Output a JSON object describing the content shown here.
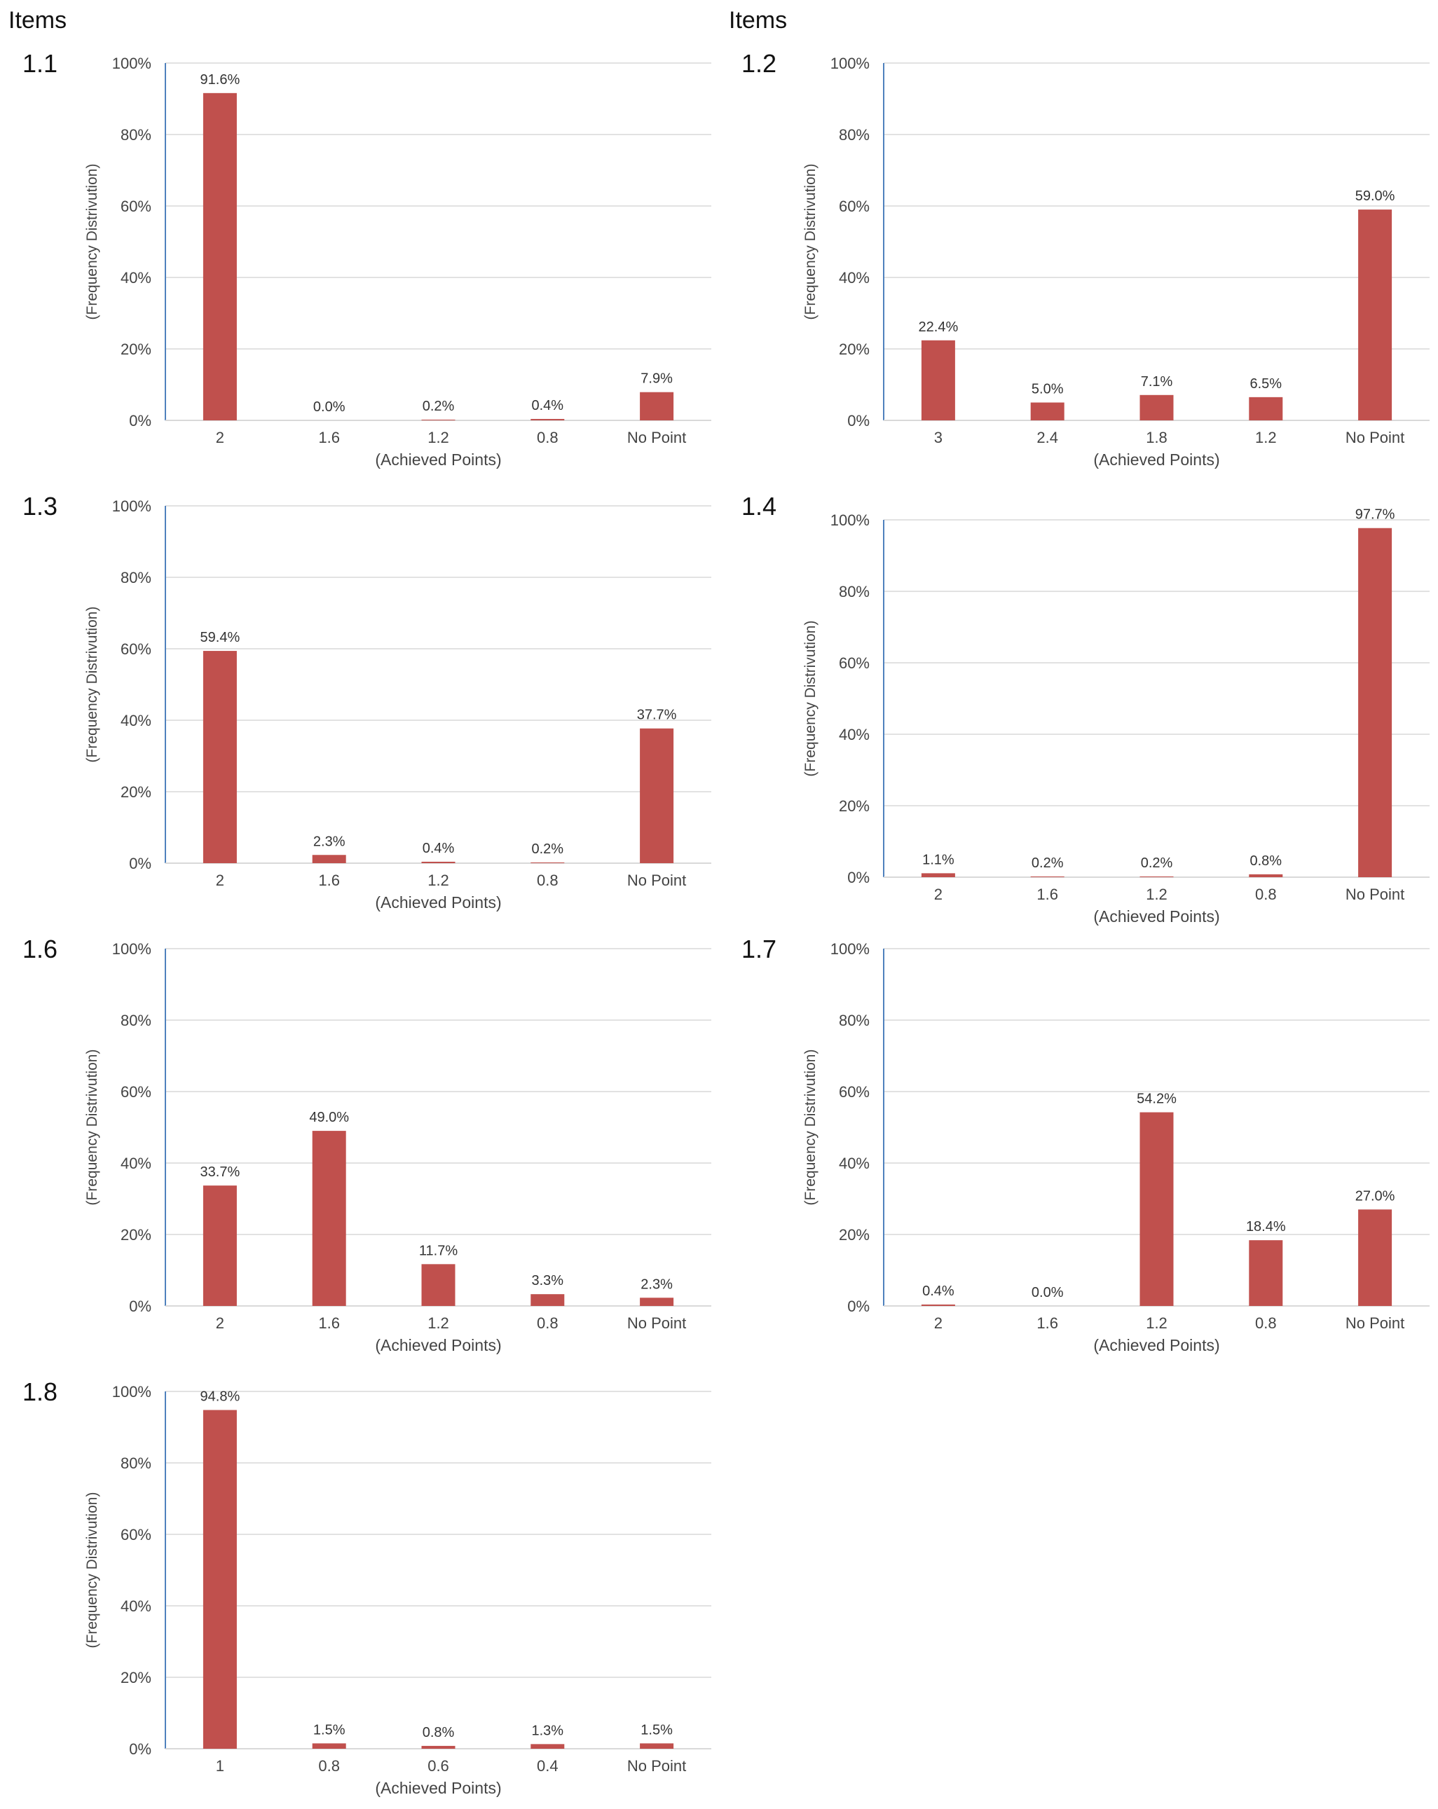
{
  "headings": [
    "Items",
    "Items"
  ],
  "colors": {
    "bar": "#c0504d",
    "grid": "#d9d9d9",
    "axis": "#4f81bd"
  },
  "chart_data": [
    {
      "id": "1.1",
      "type": "bar",
      "categories": [
        "2",
        "1.6",
        "1.2",
        "0.8",
        "No Point"
      ],
      "values": [
        91.6,
        0.0,
        0.2,
        0.4,
        7.9
      ],
      "labels": [
        "91.6%",
        "0.0%",
        "0.2%",
        "0.4%",
        "7.9%"
      ],
      "xlabel": "(Achieved Points)",
      "ylabel": "(Frequency Distrivution)",
      "yticks": [
        "0%",
        "20%",
        "40%",
        "60%",
        "80%",
        "100%"
      ],
      "ylim": [
        0,
        100
      ]
    },
    {
      "id": "1.2",
      "type": "bar",
      "categories": [
        "3",
        "2.4",
        "1.8",
        "1.2",
        "No Point"
      ],
      "values": [
        22.4,
        5.0,
        7.1,
        6.5,
        59.0
      ],
      "labels": [
        "22.4%",
        "5.0%",
        "7.1%",
        "6.5%",
        "59.0%"
      ],
      "xlabel": "(Achieved Points)",
      "ylabel": "(Frequency Distrivution)",
      "yticks": [
        "0%",
        "20%",
        "40%",
        "60%",
        "80%",
        "100%"
      ],
      "ylim": [
        0,
        100
      ]
    },
    {
      "id": "1.3",
      "type": "bar",
      "categories": [
        "2",
        "1.6",
        "1.2",
        "0.8",
        "No Point"
      ],
      "values": [
        59.4,
        2.3,
        0.4,
        0.2,
        37.7
      ],
      "labels": [
        "59.4%",
        "2.3%",
        "0.4%",
        "0.2%",
        "37.7%"
      ],
      "xlabel": "(Achieved Points)",
      "ylabel": "(Frequency Distrivution)",
      "yticks": [
        "0%",
        "20%",
        "40%",
        "60%",
        "80%",
        "100%"
      ],
      "ylim": [
        0,
        100
      ]
    },
    {
      "id": "1.4",
      "type": "bar",
      "categories": [
        "2",
        "1.6",
        "1.2",
        "0.8",
        "No Point"
      ],
      "values": [
        1.1,
        0.2,
        0.2,
        0.8,
        97.7
      ],
      "labels": [
        "1.1%",
        "0.2%",
        "0.2%",
        "0.8%",
        "97.7%"
      ],
      "xlabel": "(Achieved Points)",
      "ylabel": "(Frequency Distrivution)",
      "yticks": [
        "0%",
        "20%",
        "40%",
        "60%",
        "80%",
        "100%"
      ],
      "ylim": [
        0,
        100
      ]
    },
    {
      "id": "1.6",
      "type": "bar",
      "categories": [
        "2",
        "1.6",
        "1.2",
        "0.8",
        "No Point"
      ],
      "values": [
        33.7,
        49.0,
        11.7,
        3.3,
        2.3
      ],
      "labels": [
        "33.7%",
        "49.0%",
        "11.7%",
        "3.3%",
        "2.3%"
      ],
      "xlabel": "(Achieved Points)",
      "ylabel": "(Frequency Distrivution)",
      "yticks": [
        "0%",
        "20%",
        "40%",
        "60%",
        "80%",
        "100%"
      ],
      "ylim": [
        0,
        100
      ]
    },
    {
      "id": "1.7",
      "type": "bar",
      "categories": [
        "2",
        "1.6",
        "1.2",
        "0.8",
        "No Point"
      ],
      "values": [
        0.4,
        0.0,
        54.2,
        18.4,
        27.0
      ],
      "labels": [
        "0.4%",
        "0.0%",
        "54.2%",
        "18.4%",
        "27.0%"
      ],
      "xlabel": "(Achieved Points)",
      "ylabel": "(Frequency Distrivution)",
      "yticks": [
        "0%",
        "20%",
        "40%",
        "60%",
        "80%",
        "100%"
      ],
      "ylim": [
        0,
        100
      ]
    },
    {
      "id": "1.8",
      "type": "bar",
      "categories": [
        "1",
        "0.8",
        "0.6",
        "0.4",
        "No Point"
      ],
      "values": [
        94.8,
        1.5,
        0.8,
        1.3,
        1.5
      ],
      "labels": [
        "94.8%",
        "1.5%",
        "0.8%",
        "1.3%",
        "1.5%"
      ],
      "xlabel": "(Achieved Points)",
      "ylabel": "(Frequency Distrivution)",
      "yticks": [
        "0%",
        "20%",
        "40%",
        "60%",
        "80%",
        "100%"
      ],
      "ylim": [
        0,
        100
      ]
    }
  ]
}
